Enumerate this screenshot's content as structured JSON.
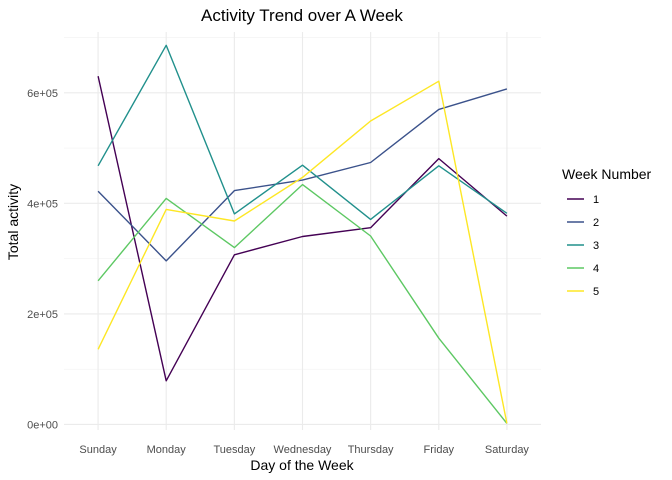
{
  "chart_data": {
    "type": "line",
    "title": "Activity Trend over A Week",
    "xlabel": "Day of the Week",
    "ylabel": "Total activity",
    "categories": [
      "Sunday",
      "Monday",
      "Tuesday",
      "Wednesday",
      "Thursday",
      "Friday",
      "Saturday"
    ],
    "ylim": [
      -10000,
      710000
    ],
    "yticks": [
      0,
      200000,
      400000,
      600000
    ],
    "ytick_labels": [
      "0e+00",
      "2e+05",
      "4e+05",
      "6e+05"
    ],
    "grid": true,
    "legend": {
      "title": "Week Number",
      "position": "right"
    },
    "series": [
      {
        "name": "1",
        "color": "#440154",
        "values": [
          630000,
          79000,
          307000,
          340000,
          356000,
          481000,
          377000
        ]
      },
      {
        "name": "2",
        "color": "#3B528B",
        "values": [
          422000,
          296000,
          423000,
          442000,
          474000,
          570000,
          607000
        ]
      },
      {
        "name": "3",
        "color": "#21908C",
        "values": [
          468000,
          686000,
          381000,
          469000,
          371000,
          468000,
          382000
        ]
      },
      {
        "name": "4",
        "color": "#5DC863",
        "values": [
          260000,
          409000,
          320000,
          434000,
          341000,
          156000,
          2000
        ]
      },
      {
        "name": "5",
        "color": "#FDE725",
        "values": [
          136000,
          389000,
          368000,
          447000,
          549000,
          621000,
          2000
        ]
      }
    ]
  }
}
